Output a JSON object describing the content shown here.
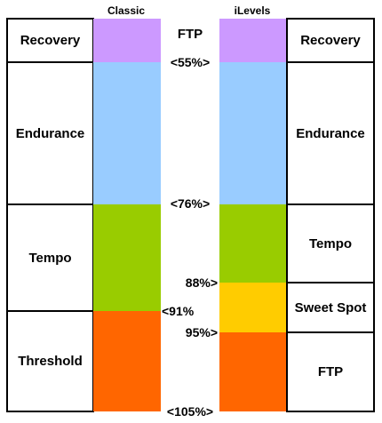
{
  "classic": {
    "title": "Classic",
    "zones": [
      {
        "label": "Recovery"
      },
      {
        "label": "Endurance"
      },
      {
        "label": "Tempo"
      },
      {
        "label": "Threshold"
      }
    ],
    "bar_colors": [
      "#cc99ff",
      "#99ccff",
      "#99cc00",
      "#ff6600"
    ]
  },
  "ilevels": {
    "title": "iLevels",
    "zones": [
      {
        "label": "Recovery"
      },
      {
        "label": "Endurance"
      },
      {
        "label": "Tempo"
      },
      {
        "label": "Sweet Spot"
      },
      {
        "label": "FTP"
      }
    ],
    "bar_colors": [
      "#cc99ff",
      "#99ccff",
      "#99cc00",
      "#ffcc00",
      "#ff6600"
    ]
  },
  "center_labels": {
    "ftp": "FTP",
    "p55": "<55%>",
    "p76": "<76%>",
    "p88": "88%>",
    "p91": "<91%",
    "p95": "95%>",
    "p105": "<105%>"
  }
}
